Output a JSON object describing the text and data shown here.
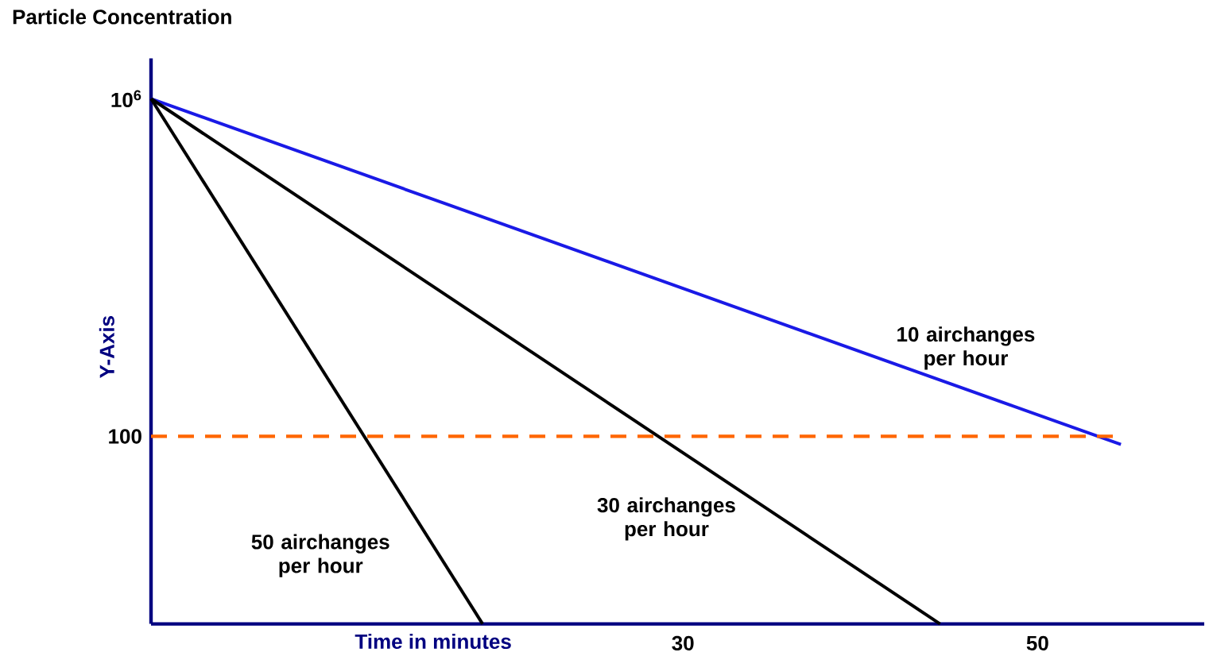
{
  "chart_data": {
    "type": "line",
    "title": "Particle Concentration",
    "xlabel": "Time in minutes",
    "ylabel": "Y-Axis",
    "log": "y",
    "xlim": [
      0,
      59.4
    ],
    "xticks": [
      30,
      50
    ],
    "ylim": [
      0.6,
      3000000
    ],
    "yticks": [
      {
        "value": 1000000,
        "label": "10$^{6}$"
      },
      100
    ],
    "series": [
      {
        "name": "10 airchanges per hour",
        "color": "#1a1ae6",
        "x": [
          0,
          54.7
        ],
        "values": [
          1000000,
          80
        ]
      },
      {
        "name": "30 airchanges per hour",
        "color": "#000000",
        "x": [
          0,
          44.5
        ],
        "values": [
          1000000,
          0.6
        ]
      },
      {
        "name": "50 airchanges per hour",
        "color": "#000000",
        "x": [
          0,
          18.7
        ],
        "values": [
          1000000,
          0.6
        ]
      }
    ],
    "ref_lines": [
      {
        "axis": "y",
        "value": 100,
        "color": "#ff6600",
        "line_style": "dashed"
      }
    ]
  }
}
